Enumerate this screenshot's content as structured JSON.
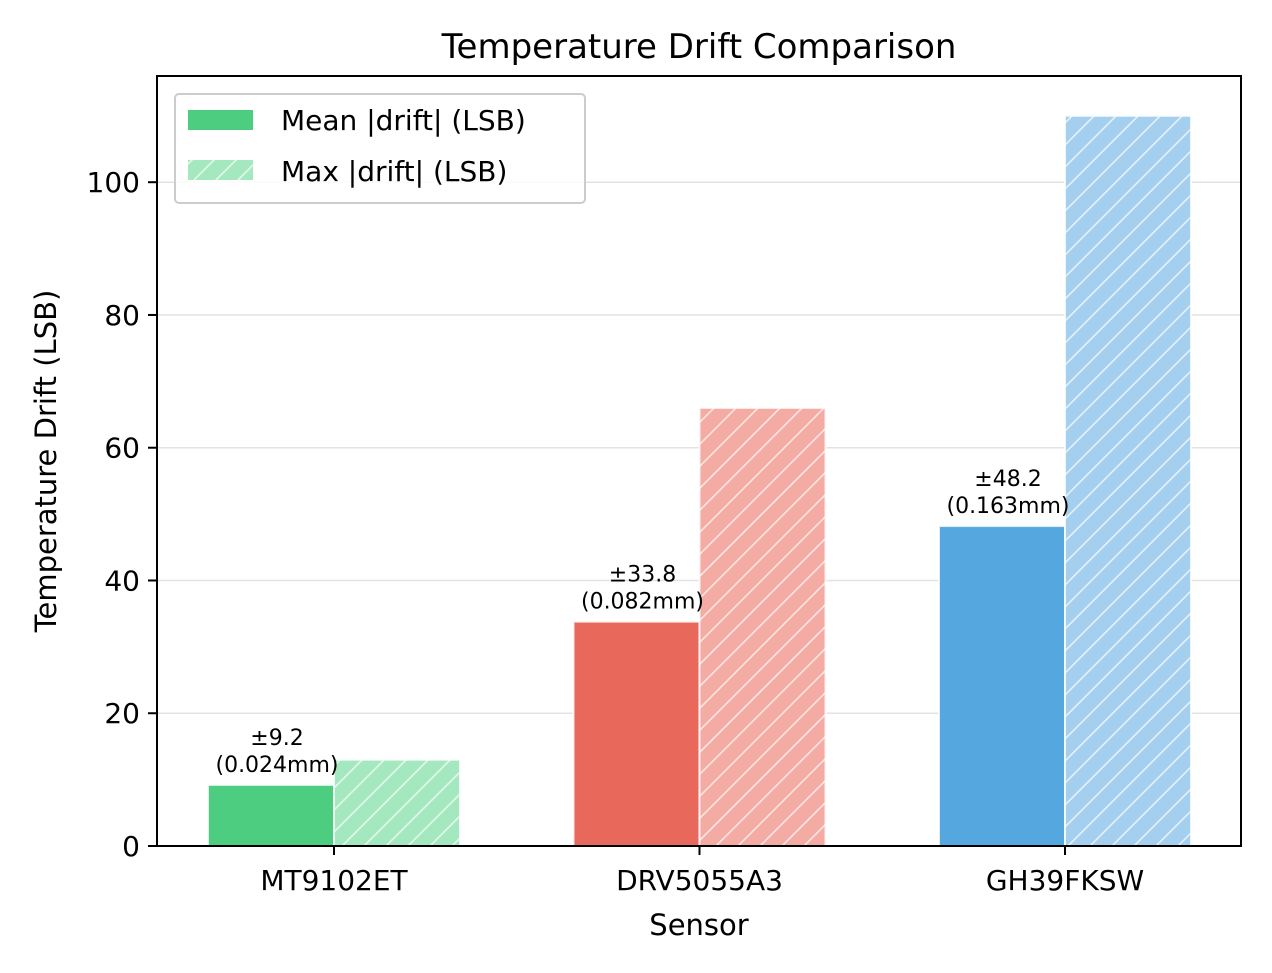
{
  "chart_data": {
    "type": "bar",
    "title": "Temperature Drift Comparison",
    "xlabel": "Sensor",
    "ylabel": "Temperature Drift (LSB)",
    "categories": [
      "MT9102ET",
      "DRV5055A3",
      "GH39FKSW"
    ],
    "ylim": [
      0,
      116
    ],
    "yticks": [
      0,
      20,
      40,
      60,
      80,
      100
    ],
    "grid": "horizontal",
    "legend_position": "top-left",
    "series": [
      {
        "name": "Mean |drift| (LSB)",
        "values": [
          9.2,
          33.8,
          48.2
        ],
        "style": "solid",
        "annotations": [
          [
            "±9.2",
            "(0.024mm)"
          ],
          [
            "±33.8",
            "(0.082mm)"
          ],
          [
            "±48.2",
            "(0.163mm)"
          ]
        ]
      },
      {
        "name": "Max |drift| (LSB)",
        "values": [
          13,
          66,
          110
        ],
        "style": "hatched"
      }
    ],
    "colors": {
      "mean": [
        "#4ccd80",
        "#e8695b",
        "#55a7e0"
      ],
      "max": [
        "#a3e8bf",
        "#f3aba3",
        "#a5cfee"
      ]
    }
  }
}
